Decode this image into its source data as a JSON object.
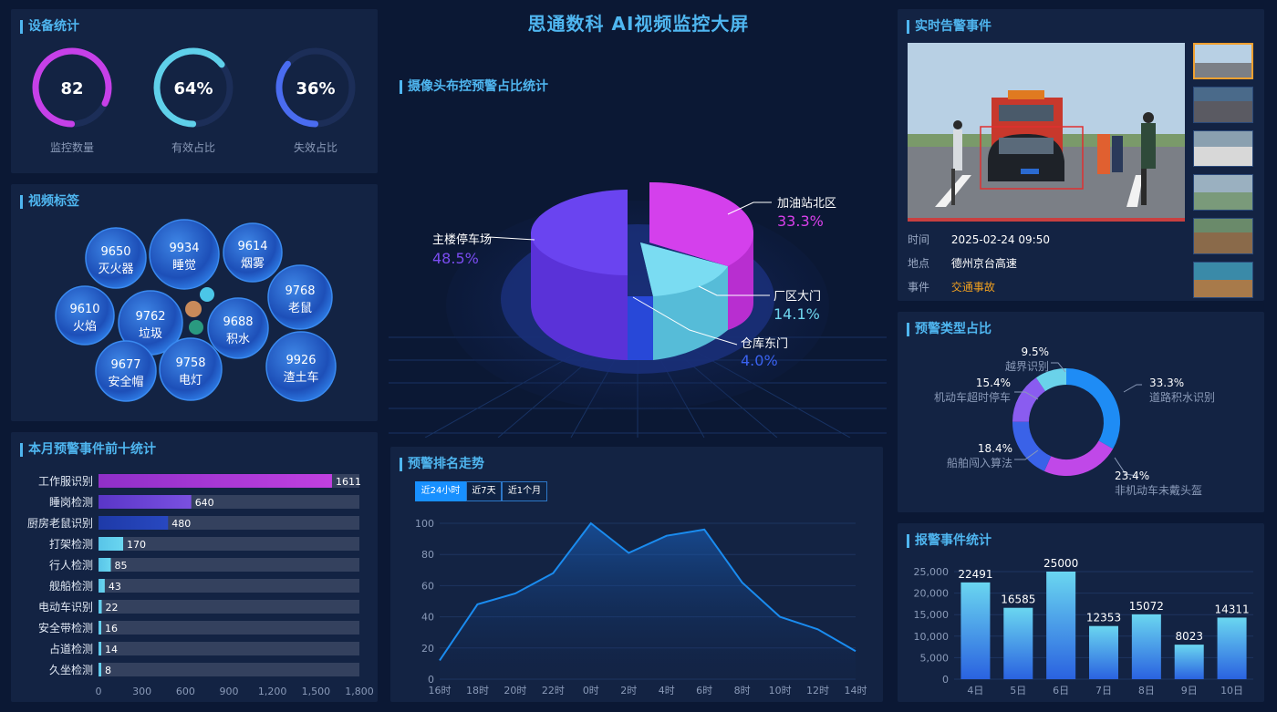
{
  "header": {
    "title": "思通数科 AI视频监控大屏"
  },
  "device_stats": {
    "title": "设备统计",
    "items": [
      {
        "value": "82",
        "label": "监控数量",
        "fraction": 0.82,
        "color": "#c640e8"
      },
      {
        "value": "64%",
        "label": "有效占比",
        "fraction": 0.64,
        "color": "#5fd0ea"
      },
      {
        "value": "36%",
        "label": "失效占比",
        "fraction": 0.36,
        "color": "#4a6cf0"
      }
    ]
  },
  "video_tags": {
    "title": "视频标签",
    "bubbles": [
      {
        "count": "9650",
        "name": "灭火器"
      },
      {
        "count": "9934",
        "name": "睡觉"
      },
      {
        "count": "9614",
        "name": "烟雾"
      },
      {
        "count": "9768",
        "name": "老鼠"
      },
      {
        "count": "9610",
        "name": "火焰"
      },
      {
        "count": "9762",
        "name": "垃圾"
      },
      {
        "count": "9688",
        "name": "积水"
      },
      {
        "count": "9677",
        "name": "安全帽"
      },
      {
        "count": "9758",
        "name": "电灯"
      },
      {
        "count": "9926",
        "name": "渣土车"
      }
    ]
  },
  "monthly_top10": {
    "title": "本月预警事件前十统计",
    "chart_data": {
      "type": "bar",
      "orientation": "horizontal",
      "categories": [
        "工作服识别",
        "睡岗检测",
        "厨房老鼠识别",
        "打架检测",
        "行人检测",
        "舰船检测",
        "电动车识别",
        "安全带检测",
        "占道检测",
        "久坐检测"
      ],
      "values": [
        1611,
        640,
        480,
        170,
        85,
        43,
        22,
        16,
        14,
        8
      ],
      "xlim": [
        0,
        1800
      ],
      "xticks": [
        "0",
        "300",
        "600",
        "900",
        "1,200",
        "1,500",
        "1,800"
      ]
    }
  },
  "camera_pie": {
    "title": "摄像头布控预警占比统计",
    "chart_data": {
      "type": "pie",
      "slices": [
        {
          "name": "加油站北区",
          "value": "33.3%",
          "color": "#d83ee8"
        },
        {
          "name": "厂区大门",
          "value": "14.1%",
          "color": "#6fd6ee"
        },
        {
          "name": "仓库东门",
          "value": "4.0%",
          "color": "#2f57e0"
        },
        {
          "name": "主楼停车场",
          "value": "48.5%",
          "color": "#6a3ff0"
        }
      ]
    }
  },
  "trend": {
    "title": "预警排名走势",
    "tabs": [
      "近24小时",
      "近7天",
      "近1个月"
    ],
    "active_tab": "近24小时",
    "chart_data": {
      "type": "area",
      "x": [
        "16时",
        "18时",
        "20时",
        "22时",
        "0时",
        "2时",
        "4时",
        "6时",
        "8时",
        "10时",
        "12时",
        "14时"
      ],
      "values": [
        12,
        48,
        55,
        68,
        100,
        81,
        92,
        96,
        62,
        40,
        32,
        18
      ],
      "ylim": [
        0,
        100
      ],
      "yticks": [
        "0",
        "20",
        "40",
        "60",
        "80",
        "100"
      ]
    }
  },
  "realtime_alert": {
    "title": "实时告警事件",
    "rows": [
      {
        "key": "时间",
        "value": "2025-02-24 09:50"
      },
      {
        "key": "地点",
        "value": "德州京台高速"
      },
      {
        "key": "事件",
        "value": "交通事故"
      }
    ],
    "event_color": "#f0a020"
  },
  "alert_types": {
    "title": "预警类型占比",
    "chart_data": {
      "type": "pie",
      "variant": "donut",
      "slices": [
        {
          "name": "道路积水识别",
          "value": "33.3%",
          "color": "#1e8cf5"
        },
        {
          "name": "非机动车未戴头盔",
          "value": "23.4%",
          "color": "#c048e8"
        },
        {
          "name": "船舶闯入算法",
          "value": "18.4%",
          "color": "#3a62e8"
        },
        {
          "name": "机动车超时停车",
          "value": "15.4%",
          "color": "#8a5cf0"
        },
        {
          "name": "越界识别",
          "value": "9.5%",
          "color": "#6ad2ea"
        }
      ]
    }
  },
  "report_stats": {
    "title": "报警事件统计",
    "chart_data": {
      "type": "bar",
      "categories": [
        "4日",
        "5日",
        "6日",
        "7日",
        "8日",
        "9日",
        "10日"
      ],
      "values": [
        22491,
        16585,
        25000,
        12353,
        15072,
        8023,
        14311
      ],
      "ylim": [
        0,
        25000
      ],
      "yticks": [
        "0",
        "5,000",
        "10,000",
        "15,000",
        "20,000",
        "25,000"
      ]
    }
  }
}
